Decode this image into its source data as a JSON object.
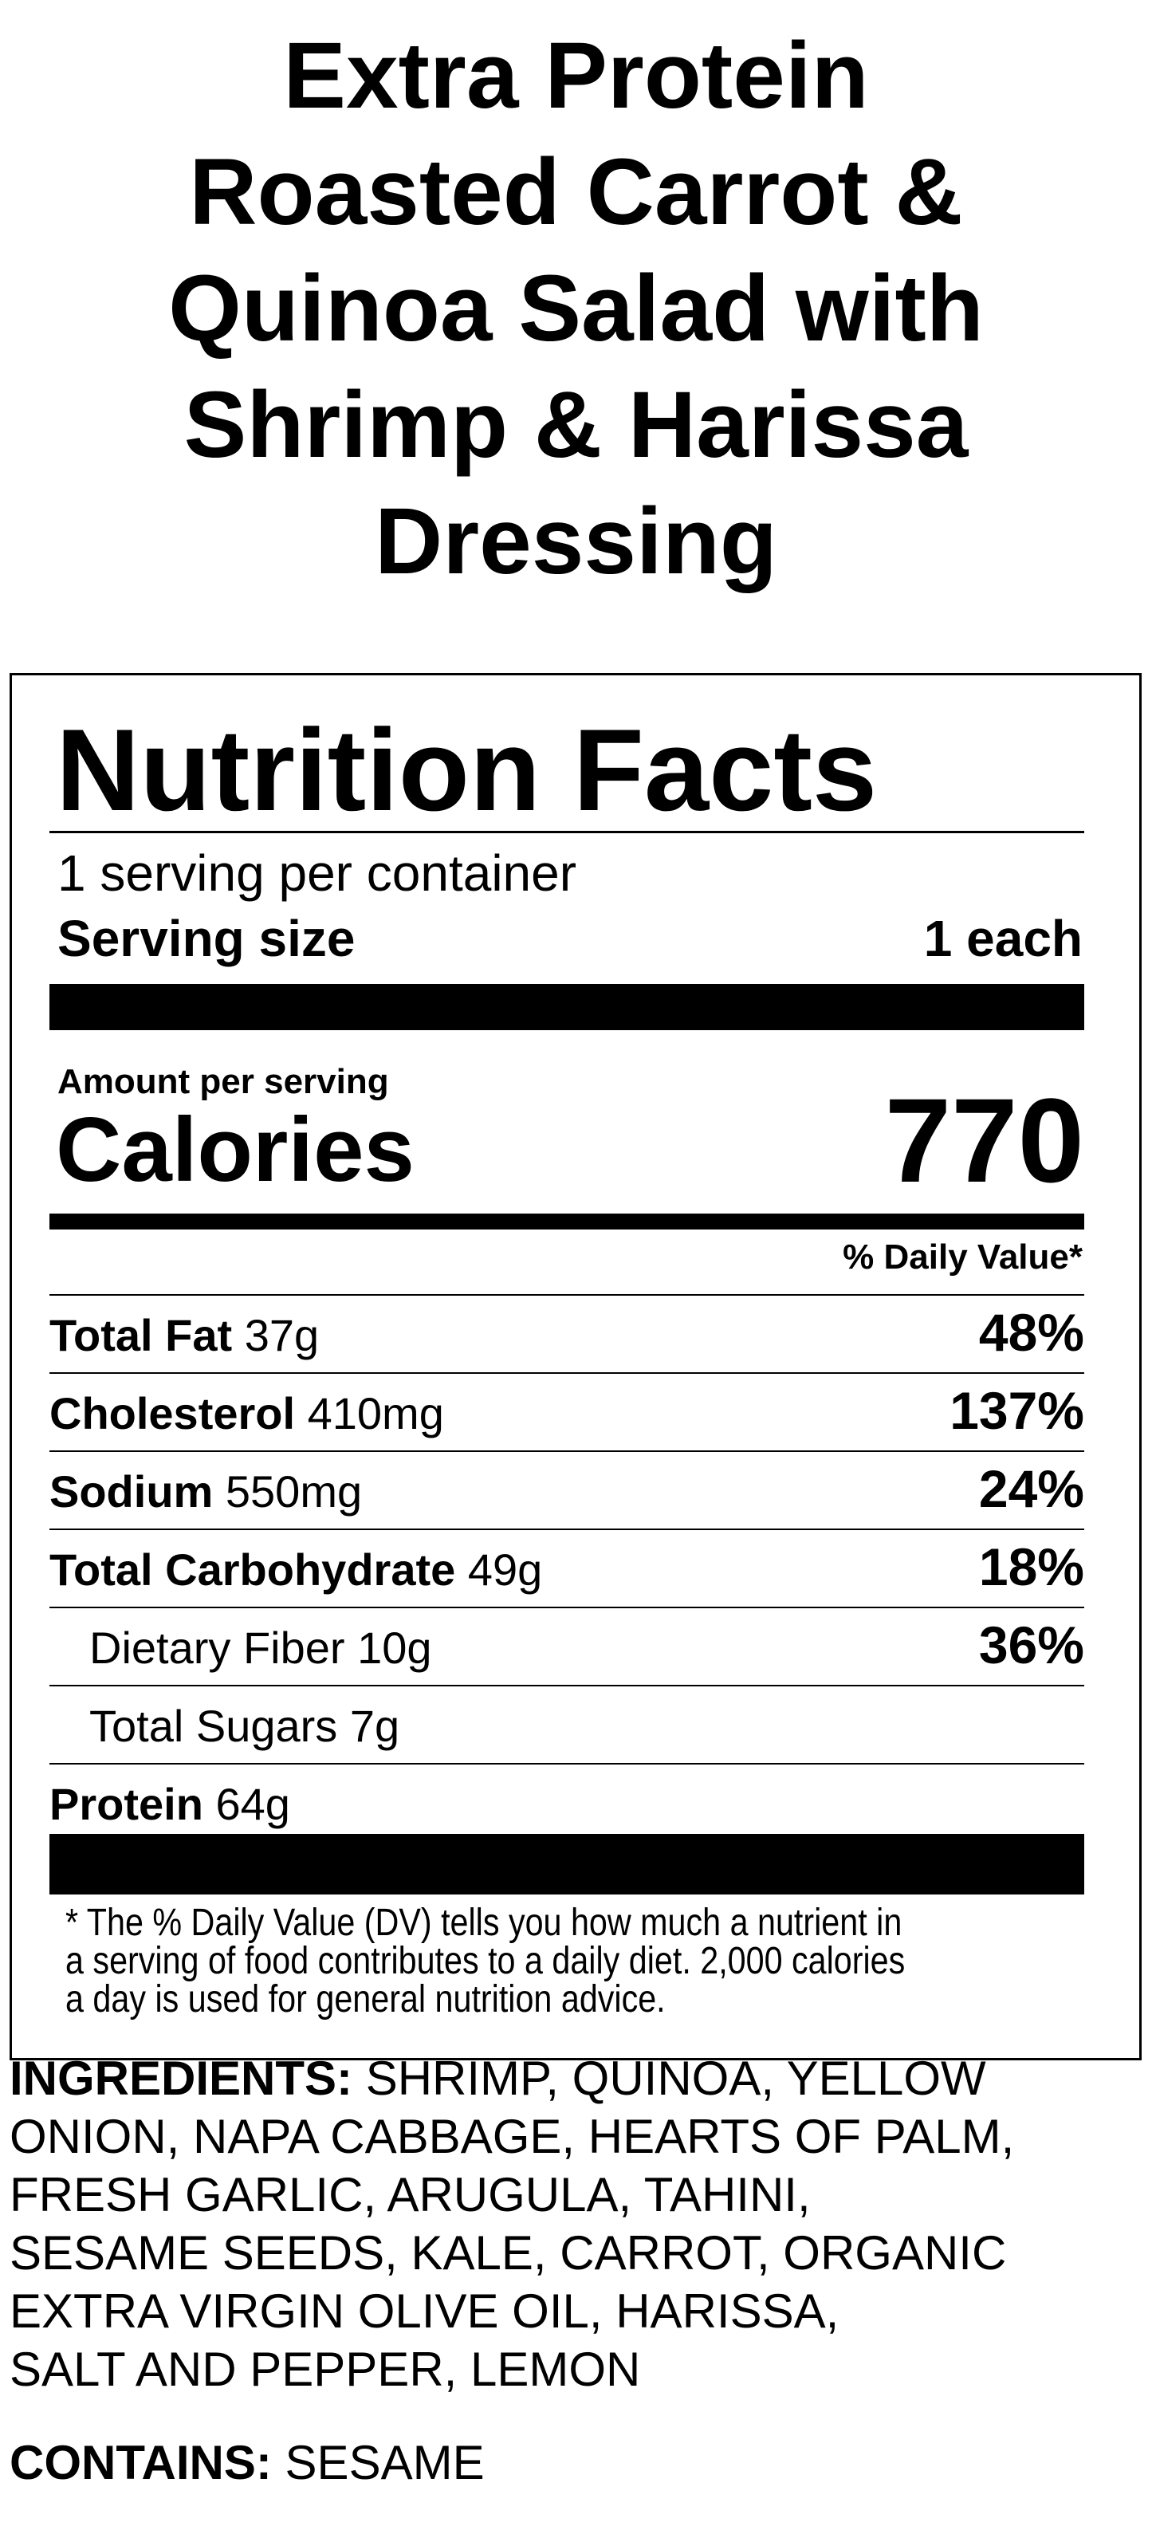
{
  "title_lines": [
    "Extra Protein",
    "Roasted Carrot &",
    "Quinoa Salad with",
    "Shrimp & Harissa",
    "Dressing"
  ],
  "label": {
    "heading": "Nutrition Facts",
    "servings": "1 serving per container",
    "serving_size_label": "Serving size",
    "serving_size_value": "1 each",
    "amount_per_serving": "Amount per serving",
    "calories_label": "Calories",
    "calories_value": "770",
    "daily_value_header": "% Daily Value*",
    "nutrients": [
      {
        "name": "Total Fat",
        "amount": "37g",
        "dv": "48%"
      },
      {
        "name": "Cholesterol",
        "amount": "410mg",
        "dv": "137%"
      },
      {
        "name": "Sodium",
        "amount": "550mg",
        "dv": "24%"
      },
      {
        "name": "Total Carbohydrate",
        "amount": "49g",
        "dv": "18%"
      },
      {
        "name": "Dietary Fiber 10g",
        "amount": "",
        "dv": "36%"
      },
      {
        "name": "Total Sugars 7g",
        "amount": "",
        "dv": ""
      },
      {
        "name": "Protein",
        "amount": "64g",
        "dv": ""
      }
    ],
    "footnote_lines": [
      "* The % Daily Value (DV) tells you how much a nutrient in",
      "a serving of food contributes to a daily diet. 2,000 calories",
      "a day is used for general nutrition advice."
    ]
  },
  "ingredients": {
    "label": "INGREDIENTS:",
    "lines": [
      " SHRIMP, QUINOA, YELLOW",
      "ONION, NAPA CABBAGE, HEARTS OF PALM,",
      "FRESH GARLIC, ARUGULA, TAHINI,",
      "SESAME SEEDS, KALE, CARROT, ORGANIC",
      "EXTRA VIRGIN OLIVE OIL, HARISSA,",
      "SALT AND PEPPER, LEMON"
    ]
  },
  "contains": {
    "label": "CONTAINS:",
    "value": " SESAME"
  }
}
